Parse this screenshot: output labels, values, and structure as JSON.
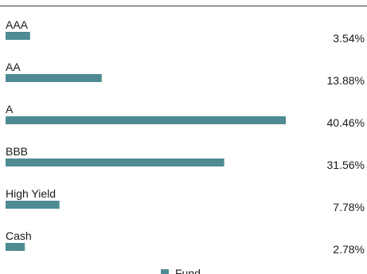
{
  "chart_data": {
    "type": "bar",
    "orientation": "horizontal",
    "categories": [
      "AAA",
      "AA",
      "A",
      "BBB",
      "High Yield",
      "Cash"
    ],
    "series": [
      {
        "name": "Fund",
        "values": [
          3.54,
          13.88,
          40.46,
          31.56,
          7.78,
          2.78
        ]
      }
    ],
    "value_labels": [
      "3.54%",
      "13.88%",
      "40.46%",
      "31.56%",
      "7.78%",
      "2.78%"
    ],
    "xlim": [
      0,
      40.46
    ],
    "grid": false,
    "legend": "bottom-center",
    "bar_color": "#4e8b93"
  }
}
